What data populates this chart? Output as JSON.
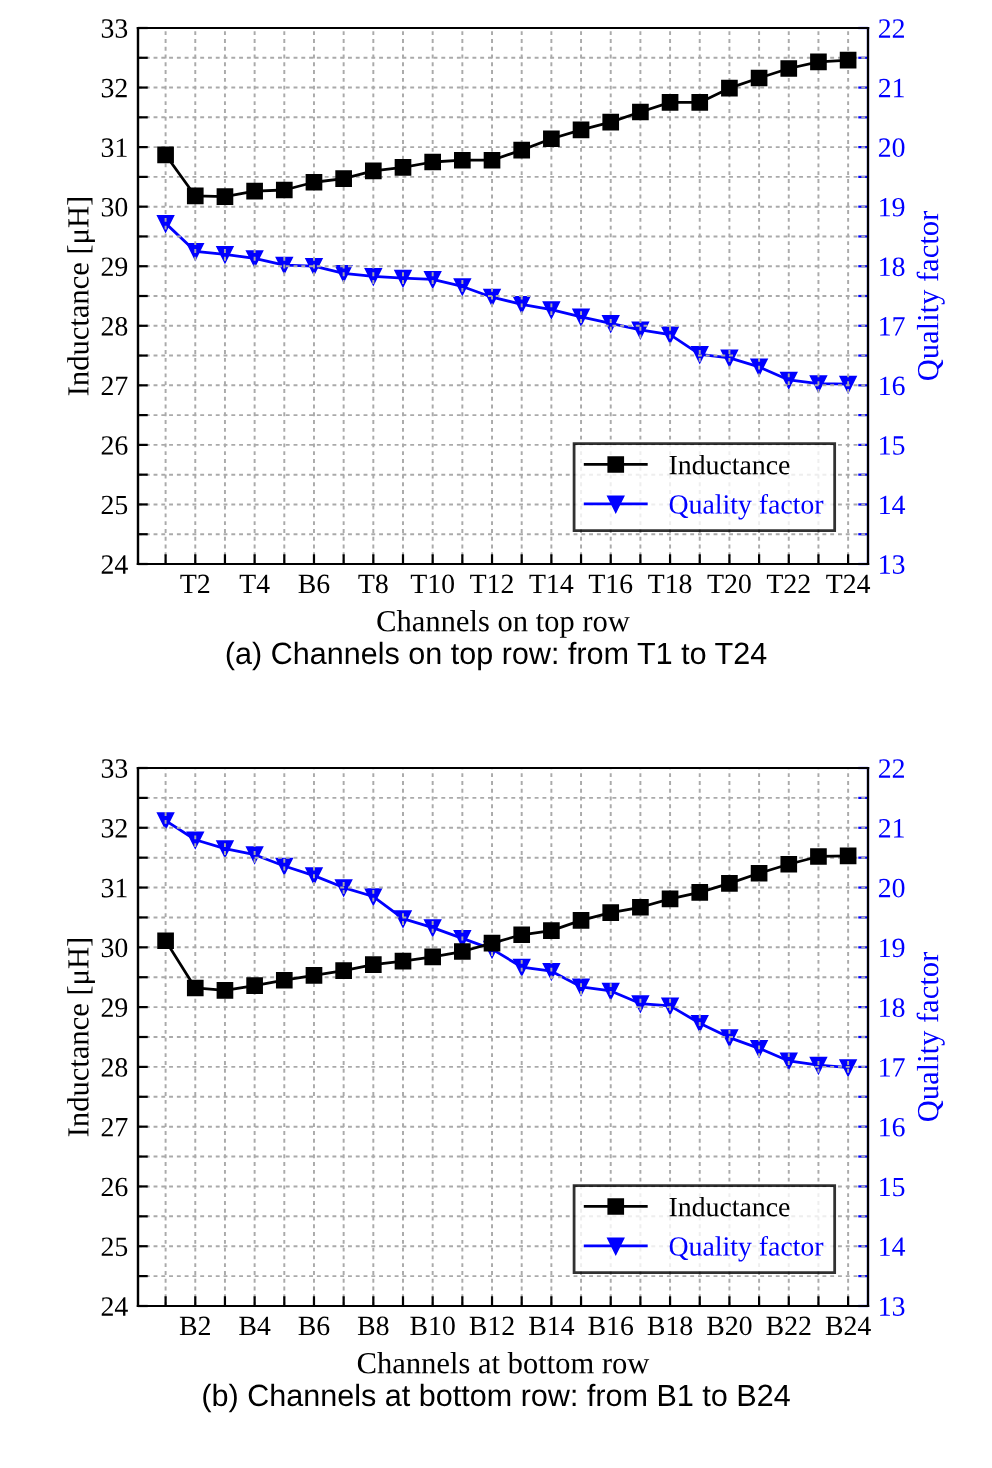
{
  "chart_data": [
    {
      "type": "line",
      "xlabel": "Channels on top row",
      "ylabel": "Inductance [μH]",
      "y2label": "Quality factor",
      "annotations": [
        "(a) Channels on top row: from T1 to T24"
      ],
      "categories": [
        null,
        "T2",
        null,
        "T4",
        null,
        "B6",
        null,
        "T8",
        null,
        "T10",
        null,
        "T12",
        null,
        "T14",
        null,
        "T16",
        null,
        "T18",
        null,
        "T20",
        null,
        "T22",
        null,
        "T24"
      ],
      "series": [
        {
          "name": "Inductance",
          "color": "#000000",
          "marker": "square",
          "values": [
            30.87,
            30.18,
            30.17,
            30.26,
            30.28,
            30.41,
            30.47,
            30.6,
            30.66,
            30.75,
            30.78,
            30.78,
            30.95,
            31.14,
            31.29,
            31.42,
            31.59,
            31.75,
            31.75,
            31.99,
            32.16,
            32.32,
            32.43,
            32.46
          ]
        },
        {
          "name": "Quality factor",
          "color": "#0000ff",
          "marker": "triangle",
          "axis": "y2",
          "values": [
            18.72,
            18.25,
            18.2,
            18.13,
            18.02,
            18.0,
            17.88,
            17.83,
            17.8,
            17.78,
            17.66,
            17.48,
            17.36,
            17.27,
            17.15,
            17.04,
            16.93,
            16.85,
            16.52,
            16.46,
            16.31,
            16.09,
            16.03,
            16.02
          ]
        }
      ],
      "ylim": [
        24,
        33
      ],
      "yticks": [
        24,
        {
          "value": 24.5,
          "label": null
        },
        25,
        {
          "value": 25.5,
          "label": null
        },
        26,
        {
          "value": 26.5,
          "label": null
        },
        27,
        {
          "value": 27.5,
          "label": null
        },
        28,
        {
          "value": 28.5,
          "label": null
        },
        29,
        {
          "value": 29.5,
          "label": null
        },
        30,
        {
          "value": 30.5,
          "label": null
        },
        31,
        {
          "value": 31.5,
          "label": null
        },
        32,
        {
          "value": 32.5,
          "label": null
        },
        33
      ],
      "y2lim": [
        13,
        22
      ],
      "y2ticks": [
        13,
        {
          "value": 13.5,
          "label": null
        },
        14,
        {
          "value": 14.5,
          "label": null
        },
        15,
        {
          "value": 15.5,
          "label": null
        },
        16,
        {
          "value": 16.5,
          "label": null
        },
        17,
        {
          "value": 17.5,
          "label": null
        },
        18,
        {
          "value": 18.5,
          "label": null
        },
        19,
        {
          "value": 19.5,
          "label": null
        },
        20,
        {
          "value": 20.5,
          "label": null
        },
        21,
        {
          "value": 21.5,
          "label": null
        },
        22
      ],
      "grid": true,
      "legend": "bottom right",
      "line_style": "solid"
    },
    {
      "type": "line",
      "xlabel": "Channels at bottom row",
      "ylabel": "Inductance [μH]",
      "y2label": "Quality factor",
      "annotations": [
        "(b) Channels at bottom row: from B1 to B24"
      ],
      "categories": [
        null,
        "B2",
        null,
        "B4",
        null,
        "B6",
        null,
        "B8",
        null,
        "B10",
        null,
        "B12",
        null,
        "B14",
        null,
        "B16",
        null,
        "B18",
        null,
        "B20",
        null,
        "B22",
        null,
        "B24"
      ],
      "series": [
        {
          "name": "Inductance",
          "color": "#000000",
          "marker": "square",
          "values": [
            30.11,
            29.32,
            29.28,
            29.36,
            29.45,
            29.53,
            29.61,
            29.71,
            29.77,
            29.84,
            29.93,
            30.07,
            30.21,
            30.28,
            30.45,
            30.58,
            30.67,
            30.81,
            30.92,
            31.07,
            31.24,
            31.39,
            31.52,
            31.53
          ]
        },
        {
          "name": "Quality factor",
          "color": "#0000ff",
          "marker": "triangle",
          "axis": "y2",
          "values": [
            21.12,
            20.8,
            20.65,
            20.55,
            20.36,
            20.2,
            20.0,
            19.85,
            19.48,
            19.33,
            19.15,
            18.97,
            18.67,
            18.6,
            18.34,
            18.27,
            18.06,
            18.02,
            17.73,
            17.49,
            17.31,
            17.1,
            17.03,
            16.99
          ]
        }
      ],
      "ylim": [
        24,
        33
      ],
      "yticks": [
        24,
        {
          "value": 24.5,
          "label": null
        },
        25,
        {
          "value": 25.5,
          "label": null
        },
        26,
        {
          "value": 26.5,
          "label": null
        },
        27,
        {
          "value": 27.5,
          "label": null
        },
        28,
        {
          "value": 28.5,
          "label": null
        },
        29,
        {
          "value": 29.5,
          "label": null
        },
        30,
        {
          "value": 30.5,
          "label": null
        },
        31,
        {
          "value": 31.5,
          "label": null
        },
        32,
        {
          "value": 32.5,
          "label": null
        },
        33
      ],
      "y2lim": [
        13,
        22
      ],
      "y2ticks": [
        13,
        {
          "value": 13.5,
          "label": null
        },
        14,
        {
          "value": 14.5,
          "label": null
        },
        15,
        {
          "value": 15.5,
          "label": null
        },
        16,
        {
          "value": 16.5,
          "label": null
        },
        17,
        {
          "value": 17.5,
          "label": null
        },
        18,
        {
          "value": 18.5,
          "label": null
        },
        19,
        {
          "value": 19.5,
          "label": null
        },
        20,
        {
          "value": 20.5,
          "label": null
        },
        21,
        {
          "value": 21.5,
          "label": null
        },
        22
      ],
      "grid": true,
      "legend": "bottom right",
      "line_style": "solid"
    }
  ]
}
